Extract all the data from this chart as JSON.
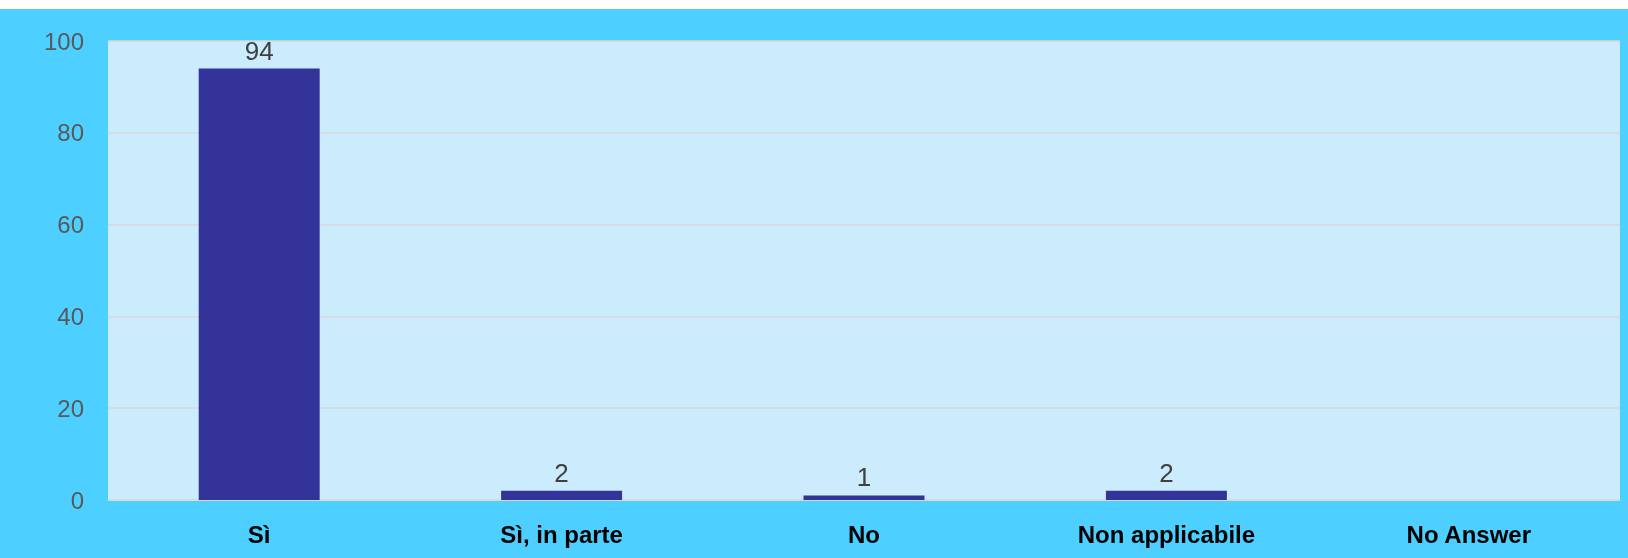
{
  "chart_data": {
    "type": "bar",
    "categories": [
      "Sì",
      "Sì, in parte",
      "No",
      "Non applicabile",
      "No Answer"
    ],
    "values": [
      94,
      2,
      1,
      2,
      null
    ],
    "value_labels": [
      "94",
      "2",
      "1",
      "2",
      null
    ],
    "color": "#333399",
    "ylim": [
      0,
      100
    ],
    "yticks": [
      0,
      20,
      40,
      60,
      80,
      100
    ],
    "grid": "y"
  }
}
